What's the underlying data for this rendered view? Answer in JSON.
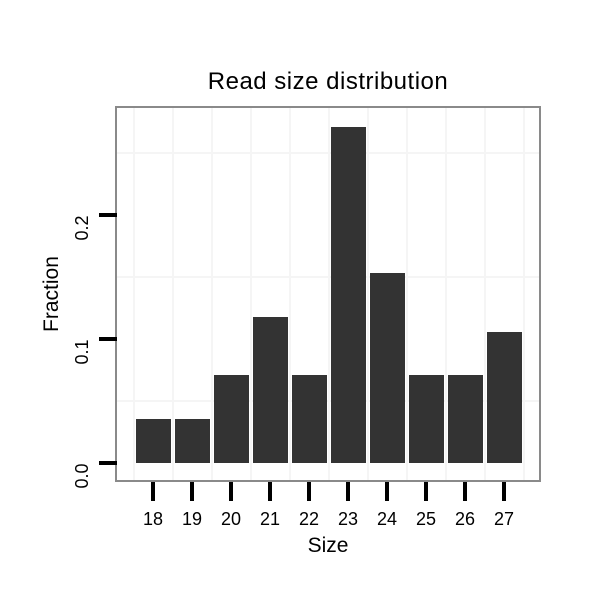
{
  "chart_data": {
    "type": "bar",
    "title": "Read size distribution",
    "xlabel": "Size",
    "ylabel": "Fraction",
    "categories": [
      "18",
      "19",
      "20",
      "21",
      "22",
      "23",
      "24",
      "25",
      "26",
      "27"
    ],
    "values": [
      0.0353,
      0.0353,
      0.0706,
      0.1176,
      0.0706,
      0.2706,
      0.1529,
      0.0706,
      0.0706,
      0.1059
    ],
    "ytick_values": [
      0.0,
      0.1,
      0.2
    ],
    "ytick_labels": [
      "0.0",
      "0.1",
      "0.2"
    ],
    "ylim": [
      -0.014,
      0.286
    ],
    "grid": {
      "h_minor_values": [
        0.05,
        0.15,
        0.25
      ],
      "v_minor": "category-boundaries",
      "major_visible": false
    },
    "legend": "none",
    "colors": {
      "bar": "#333333",
      "panel_border": "#8a8a8a",
      "panel_background": "#ffffff",
      "gridline": "#f5f5f5",
      "tick": "#000000",
      "text": "#000000",
      "background": "#ffffff"
    }
  }
}
